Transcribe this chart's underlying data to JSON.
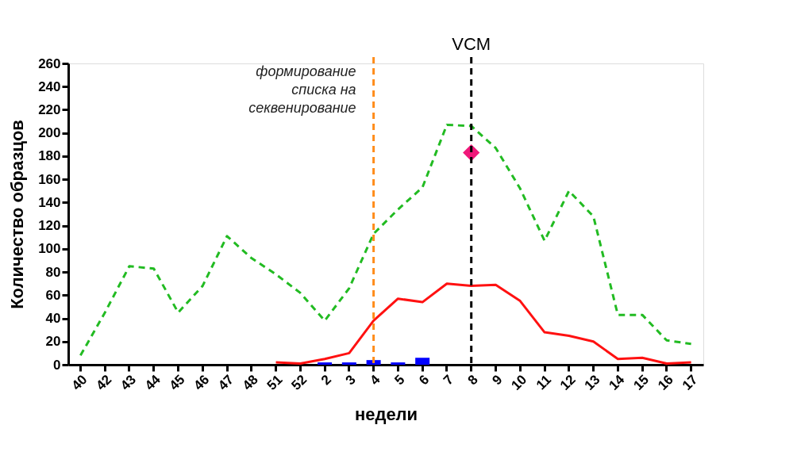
{
  "chart_data": {
    "type": "line",
    "xlabel": "недели",
    "ylabel": "Количество образцов",
    "categories": [
      "40",
      "42",
      "43",
      "44",
      "45",
      "46",
      "47",
      "48",
      "51",
      "52",
      "2",
      "3",
      "4",
      "5",
      "6",
      "7",
      "8",
      "9",
      "10",
      "11",
      "12",
      "13",
      "14",
      "15",
      "16",
      "17"
    ],
    "series": [
      {
        "color": "#22bb22",
        "line_style": "dashed",
        "values": [
          8,
          45,
          85,
          83,
          45,
          68,
          111,
          92,
          78,
          62,
          38,
          66,
          113,
          134,
          153,
          207,
          206,
          187,
          152,
          107,
          150,
          128,
          43,
          43,
          21,
          18
        ]
      },
      {
        "color": "#ff1111",
        "line_style": "solid",
        "values": [
          null,
          null,
          null,
          null,
          null,
          null,
          null,
          null,
          2,
          1,
          5,
          10,
          38,
          57,
          54,
          70,
          68,
          69,
          55,
          28,
          25,
          20,
          5,
          6,
          1,
          2
        ]
      },
      {
        "type": "bar",
        "color": "#0000ff",
        "values": [
          null,
          null,
          null,
          null,
          null,
          null,
          null,
          null,
          null,
          null,
          2,
          2,
          4,
          2,
          6,
          null,
          null,
          null,
          null,
          null,
          null,
          null,
          null,
          null,
          null,
          null
        ]
      },
      {
        "type": "scatter",
        "color": "#f0187a",
        "marker": "diamond",
        "values": [
          null,
          null,
          null,
          null,
          null,
          null,
          null,
          null,
          null,
          null,
          null,
          null,
          null,
          null,
          null,
          null,
          183,
          null,
          null,
          null,
          null,
          null,
          null,
          null,
          null,
          null
        ]
      }
    ],
    "ylim": [
      0,
      260
    ],
    "yticks": [
      0,
      20,
      40,
      60,
      80,
      100,
      120,
      140,
      160,
      180,
      200,
      220,
      240,
      260
    ],
    "grid": false,
    "ref_lines": [
      {
        "axis": "x",
        "value": "4",
        "label": "формирование\nсписка на\nсеквенирование",
        "color": "#ff8c1a",
        "line_style": "dashed"
      },
      {
        "axis": "x",
        "value": "8",
        "label": "VCM",
        "color": "#000000",
        "line_style": "dashed"
      }
    ]
  }
}
